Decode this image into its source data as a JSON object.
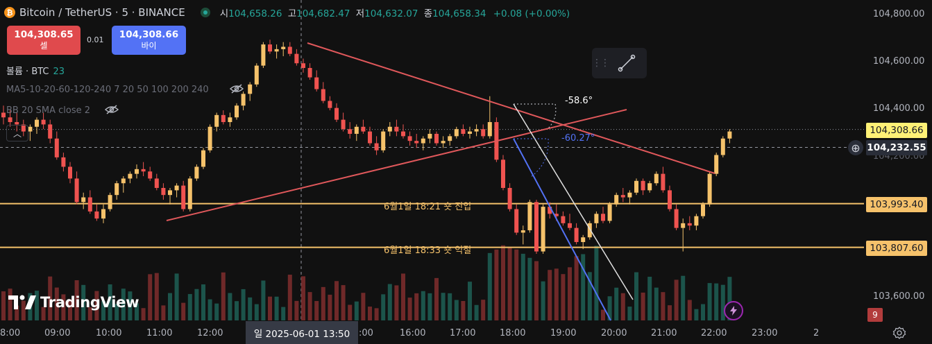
{
  "legend": {
    "coin_icon": "bitcoin-icon",
    "symbol": "Bitcoin / TetherUS · 5 · BINANCE",
    "open_label": "시",
    "open": "104,658.26",
    "high_label": "고",
    "high": "104,682.47",
    "low_label": "저",
    "low": "104,632.07",
    "close_label": "종",
    "close": "104,658.34",
    "change": "+0.08 (+0.00%)"
  },
  "trade": {
    "sell_price": "104,308.65",
    "sell_label": "셀",
    "spread": "0.01",
    "buy_price": "104,308.66",
    "buy_label": "바이"
  },
  "indicators": {
    "volume_label": "볼륨 · BTC",
    "volume_value": "23",
    "ma_label": "MA5-10-20-60-120-240 7 20 50 100 200 240",
    "bb_label": "BB 20 SMA close 2"
  },
  "price_axis": {
    "ticks": [
      "104,800.00",
      "104,600.00",
      "104,400.00",
      "104,200.00",
      "103,600.00"
    ],
    "tick_values": [
      104800,
      104600,
      104400,
      104200,
      103600
    ],
    "last_price": "104,308.66",
    "crosshair_price": "104,232.55",
    "level1": "103,993.40",
    "level2": "103,807.60",
    "bars_badge": "9"
  },
  "time_axis": {
    "ticks": [
      "8:00",
      "09:00",
      "10:00",
      "11:00",
      "12:00",
      "16:00",
      "17:00",
      "18:00",
      "19:00",
      "20:00",
      "21:00",
      "22:00",
      "23:00",
      "2"
    ],
    "crosshair_time": "일 2025-06-01   13:50",
    "partial_tick": ":00"
  },
  "annotations": {
    "level1_text": "6월1일 18:21 숏 진입",
    "level2_text": "6월1일 18:33 숏 익절",
    "angle1": "-58.6°",
    "angle2": "-60.27°"
  },
  "logo": {
    "text": "TradingView"
  },
  "colors": {
    "up": "#26a69a",
    "down": "#ef5350",
    "candle_up": "#f5c26b",
    "level": "#f6c26b",
    "trend": "#e0585b",
    "blue_line": "#5372f5"
  },
  "chart_data": {
    "type": "candlestick",
    "symbol": "BTCUSDT",
    "interval": "5",
    "y_range": [
      103550,
      104850
    ],
    "time_range": [
      "08:00",
      "23:00"
    ],
    "horizontal_levels": [
      103993.4,
      103807.6
    ],
    "candles": [
      [
        104380,
        104410,
        104330,
        104360
      ],
      [
        104360,
        104390,
        104320,
        104340
      ],
      [
        104340,
        104380,
        104300,
        104330
      ],
      [
        104330,
        104350,
        104280,
        104300
      ],
      [
        104300,
        104330,
        104260,
        104320
      ],
      [
        104320,
        104360,
        104290,
        104350
      ],
      [
        104350,
        104380,
        104310,
        104330
      ],
      [
        104330,
        104350,
        104250,
        104270
      ],
      [
        104270,
        104300,
        104180,
        104190
      ],
      [
        104190,
        104210,
        104130,
        104150
      ],
      [
        104150,
        104170,
        104080,
        104100
      ],
      [
        104100,
        104130,
        103990,
        104000
      ],
      [
        104000,
        104040,
        103970,
        104020
      ],
      [
        104020,
        104050,
        103950,
        103960
      ],
      [
        103960,
        103990,
        103920,
        103930
      ],
      [
        103930,
        103990,
        103910,
        103970
      ],
      [
        103970,
        104040,
        103960,
        104030
      ],
      [
        104030,
        104090,
        104010,
        104080
      ],
      [
        104080,
        104110,
        104040,
        104100
      ],
      [
        104100,
        104130,
        104080,
        104120
      ],
      [
        104120,
        104160,
        104100,
        104140
      ],
      [
        104140,
        104170,
        104110,
        104130
      ],
      [
        104130,
        104150,
        104090,
        104100
      ],
      [
        104100,
        104120,
        104050,
        104060
      ],
      [
        104060,
        104080,
        104010,
        104030
      ],
      [
        104030,
        104060,
        103990,
        104050
      ],
      [
        104050,
        104080,
        104020,
        104070
      ],
      [
        104070,
        104090,
        103960,
        103970
      ],
      [
        103970,
        104110,
        103960,
        104100
      ],
      [
        104100,
        104160,
        104090,
        104150
      ],
      [
        104150,
        104230,
        104140,
        104220
      ],
      [
        104220,
        104330,
        104210,
        104320
      ],
      [
        104320,
        104380,
        104300,
        104370
      ],
      [
        104370,
        104390,
        104330,
        104340
      ],
      [
        104340,
        104380,
        104320,
        104360
      ],
      [
        104360,
        104420,
        104350,
        104410
      ],
      [
        104410,
        104470,
        104390,
        104460
      ],
      [
        104460,
        104510,
        104430,
        104500
      ],
      [
        104500,
        104590,
        104490,
        104580
      ],
      [
        104580,
        104680,
        104570,
        104670
      ],
      [
        104670,
        104690,
        104630,
        104640
      ],
      [
        104640,
        104670,
        104610,
        104650
      ],
      [
        104650,
        104680,
        104620,
        104660
      ],
      [
        104660,
        104680,
        104620,
        104630
      ],
      [
        104630,
        104650,
        104580,
        104590
      ],
      [
        104590,
        104610,
        104550,
        104570
      ],
      [
        104570,
        104590,
        104520,
        104530
      ],
      [
        104530,
        104560,
        104470,
        104480
      ],
      [
        104480,
        104510,
        104420,
        104430
      ],
      [
        104430,
        104450,
        104390,
        104400
      ],
      [
        104400,
        104420,
        104340,
        104350
      ],
      [
        104350,
        104380,
        104300,
        104310
      ],
      [
        104310,
        104340,
        104270,
        104290
      ],
      [
        104290,
        104330,
        104260,
        104320
      ],
      [
        104320,
        104350,
        104290,
        104300
      ],
      [
        104300,
        104320,
        104240,
        104250
      ],
      [
        104250,
        104280,
        104200,
        104220
      ],
      [
        104220,
        104310,
        104210,
        104300
      ],
      [
        104300,
        104340,
        104280,
        104320
      ],
      [
        104320,
        104350,
        104280,
        104300
      ],
      [
        104300,
        104330,
        104270,
        104280
      ],
      [
        104280,
        104300,
        104240,
        104260
      ],
      [
        104260,
        104290,
        104230,
        104250
      ],
      [
        104250,
        104280,
        104220,
        104270
      ],
      [
        104270,
        104310,
        104250,
        104290
      ],
      [
        104290,
        104300,
        104240,
        104250
      ],
      [
        104250,
        104280,
        104230,
        104260
      ],
      [
        104260,
        104290,
        104240,
        104280
      ],
      [
        104280,
        104320,
        104270,
        104310
      ],
      [
        104310,
        104330,
        104280,
        104290
      ],
      [
        104290,
        104320,
        104270,
        104300
      ],
      [
        104300,
        104330,
        104280,
        104310
      ],
      [
        104310,
        104330,
        104270,
        104280
      ],
      [
        104280,
        104450,
        104270,
        104340
      ],
      [
        104340,
        104360,
        104170,
        104180
      ],
      [
        104180,
        104200,
        104050,
        104060
      ],
      [
        104060,
        104080,
        103960,
        103970
      ],
      [
        103970,
        103990,
        103860,
        103870
      ],
      [
        103870,
        103900,
        103820,
        103880
      ],
      [
        103880,
        104010,
        103870,
        104000
      ],
      [
        104000,
        104010,
        103780,
        103790
      ],
      [
        103790,
        103990,
        103780,
        103980
      ],
      [
        103980,
        104000,
        103930,
        103950
      ],
      [
        103950,
        103990,
        103920,
        103940
      ],
      [
        103940,
        103960,
        103900,
        103910
      ],
      [
        103910,
        103950,
        103880,
        103890
      ],
      [
        103890,
        103910,
        103820,
        103830
      ],
      [
        103830,
        103860,
        103800,
        103850
      ],
      [
        103850,
        103920,
        103840,
        103910
      ],
      [
        103910,
        103960,
        103890,
        103950
      ],
      [
        103950,
        103980,
        103910,
        103920
      ],
      [
        103920,
        104000,
        103910,
        103990
      ],
      [
        103990,
        104040,
        103980,
        104030
      ],
      [
        104030,
        104060,
        104000,
        104020
      ],
      [
        104020,
        104050,
        103990,
        104040
      ],
      [
        104040,
        104100,
        104030,
        104090
      ],
      [
        104090,
        104100,
        104030,
        104050
      ],
      [
        104050,
        104090,
        104040,
        104080
      ],
      [
        104080,
        104130,
        104070,
        104120
      ],
      [
        104120,
        104150,
        104040,
        104050
      ],
      [
        104050,
        104070,
        103960,
        103970
      ],
      [
        103970,
        103990,
        103880,
        103890
      ],
      [
        103890,
        103930,
        103790,
        103910
      ],
      [
        103910,
        103940,
        103880,
        103900
      ],
      [
        103900,
        103950,
        103880,
        103940
      ],
      [
        103940,
        104000,
        103930,
        103990
      ],
      [
        103990,
        104130,
        103980,
        104120
      ],
      [
        104120,
        104210,
        104110,
        104200
      ],
      [
        104200,
        104280,
        104190,
        104270
      ],
      [
        104270,
        104310,
        104250,
        104300
      ]
    ],
    "volumes_description": "volume histogram under price, green=up red=down"
  }
}
